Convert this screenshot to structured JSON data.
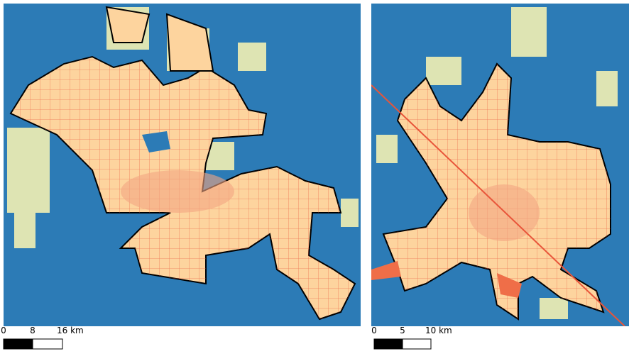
{
  "panels": [
    {
      "scale_bar": {
        "labels": [
          "0",
          "8",
          "16 km"
        ]
      }
    },
    {
      "scale_bar": {
        "labels": [
          "0",
          "5",
          "10 km"
        ]
      }
    }
  ]
}
